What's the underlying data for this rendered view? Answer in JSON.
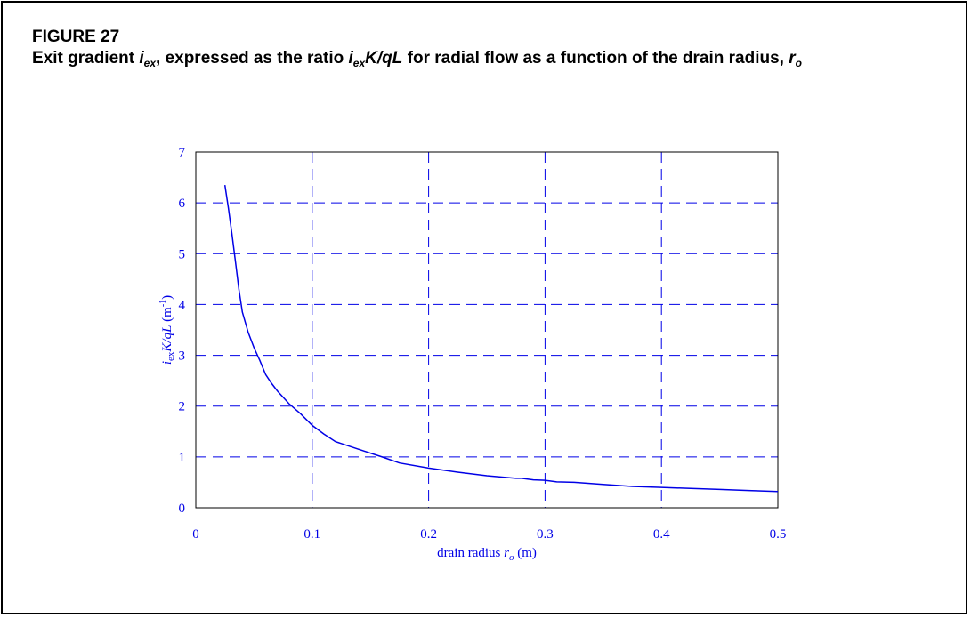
{
  "figure": {
    "number_label": "FIGURE 27",
    "caption": {
      "t1": "Exit gradient ",
      "i_sym": "i",
      "ex_sub": "ex",
      "t2": ", expressed as the ratio ",
      "i_sym2": "i",
      "ex_sub2": "ex",
      "ratio_tail": "K/qL",
      "t3": " for radial flow as a function of the drain radius, ",
      "r_sym": "r",
      "o_sub": "o"
    }
  },
  "chart_data": {
    "type": "line",
    "xlim": [
      0,
      0.5
    ],
    "ylim": [
      0,
      7
    ],
    "x_ticks": [
      "0",
      "0.1",
      "0.2",
      "0.3",
      "0.4",
      "0.5"
    ],
    "y_ticks": [
      "0",
      "1",
      "2",
      "3",
      "4",
      "5",
      "6",
      "7"
    ],
    "xlabel": {
      "main": "drain radius ",
      "sym": "r",
      "sub": "o",
      "unit": " (m)"
    },
    "ylabel": {
      "i": "i",
      "ex": "ex",
      "kql": "K/qL",
      "unit_open": "  (m",
      "unit_sup": "-1",
      "unit_close": ")"
    },
    "grid": true,
    "series": [
      {
        "x": [
          0.025,
          0.028,
          0.031,
          0.034,
          0.037,
          0.04,
          0.045,
          0.05,
          0.055,
          0.06,
          0.065,
          0.07,
          0.08,
          0.09,
          0.1,
          0.11,
          0.12,
          0.14,
          0.16,
          0.175,
          0.2,
          0.225,
          0.25,
          0.275,
          0.28,
          0.29,
          0.3,
          0.31,
          0.325,
          0.35,
          0.375,
          0.4,
          0.425,
          0.45,
          0.475,
          0.5
        ],
        "y": [
          6.35,
          5.9,
          5.4,
          4.85,
          4.3,
          3.85,
          3.45,
          3.15,
          2.9,
          2.62,
          2.45,
          2.3,
          2.05,
          1.85,
          1.62,
          1.45,
          1.3,
          1.15,
          1.0,
          0.88,
          0.78,
          0.7,
          0.63,
          0.58,
          0.58,
          0.55,
          0.54,
          0.51,
          0.5,
          0.46,
          0.42,
          0.4,
          0.38,
          0.36,
          0.34,
          0.32
        ]
      }
    ],
    "colors": {
      "line": "#0000e6",
      "grid": "#0000e6",
      "axis_text": "#0000e6"
    }
  }
}
